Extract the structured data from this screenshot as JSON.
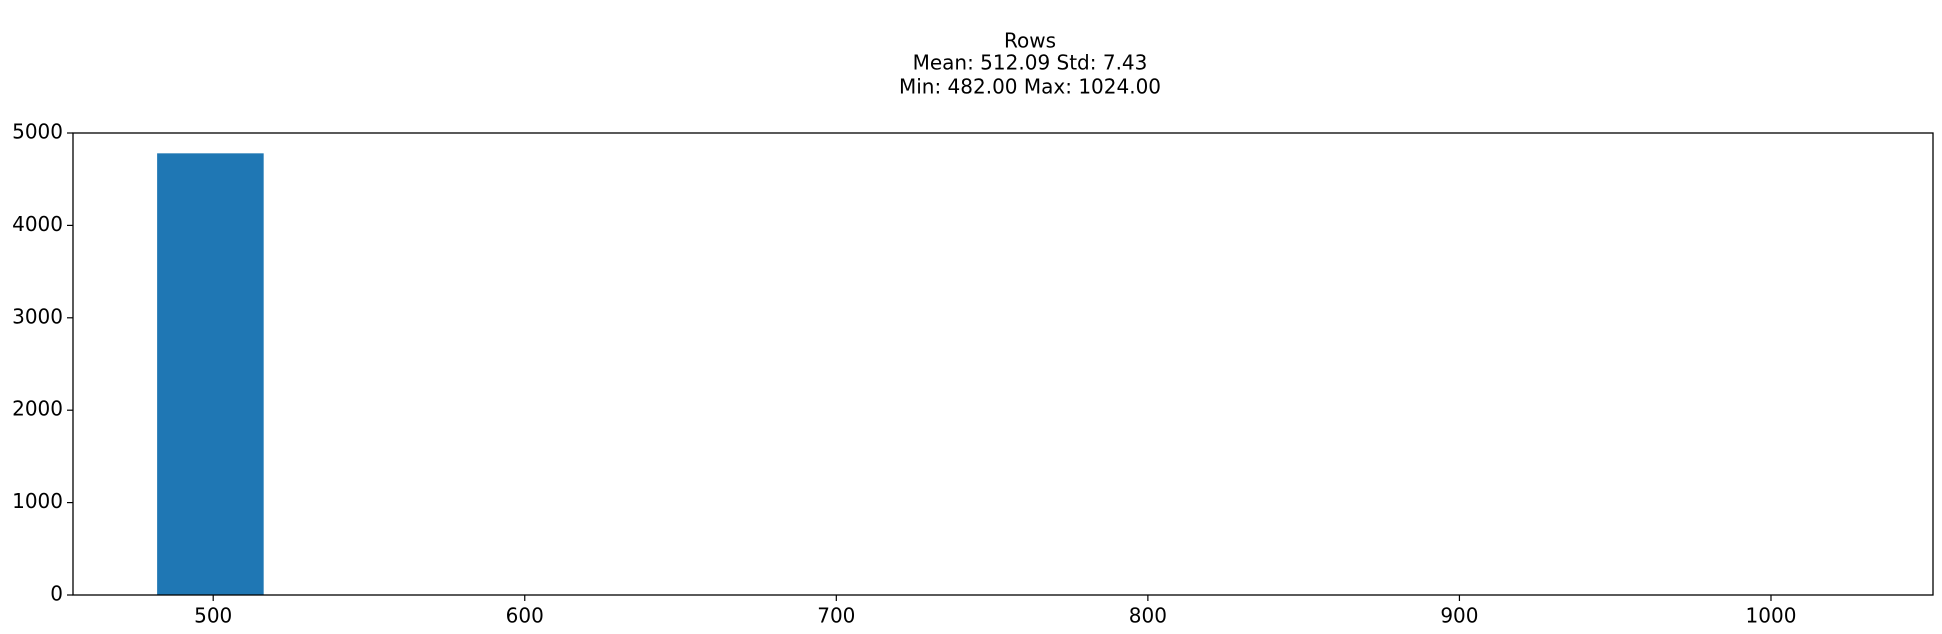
{
  "chart_data": {
    "type": "bar",
    "title_lines": [
      "Rows",
      "Mean: 512.09 Std: 7.43",
      "Min: 482.00 Max: 1024.00"
    ],
    "xlabel": "",
    "ylabel": "",
    "xlim": [
      455,
      1052
    ],
    "ylim": [
      0,
      5000
    ],
    "xticks": [
      500,
      600,
      700,
      800,
      900,
      1000
    ],
    "yticks": [
      0,
      1000,
      2000,
      3000,
      4000,
      5000
    ],
    "bins": [
      {
        "x0": 482.0,
        "x1": 516.2,
        "count": 4780
      },
      {
        "x0": 516.2,
        "x1": 550.4,
        "count": 0
      },
      {
        "x0": 550.4,
        "x1": 584.6,
        "count": 0
      },
      {
        "x0": 584.6,
        "x1": 618.8,
        "count": 0
      },
      {
        "x0": 618.8,
        "x1": 653.0,
        "count": 0
      },
      {
        "x0": 653.0,
        "x1": 687.2,
        "count": 0
      },
      {
        "x0": 687.2,
        "x1": 721.4,
        "count": 0
      },
      {
        "x0": 721.4,
        "x1": 755.6,
        "count": 0
      },
      {
        "x0": 755.6,
        "x1": 789.8,
        "count": 0
      },
      {
        "x0": 789.8,
        "x1": 824.0,
        "count": 0
      },
      {
        "x0": 824.0,
        "x1": 858.2,
        "count": 0
      },
      {
        "x0": 858.2,
        "x1": 892.4,
        "count": 0
      },
      {
        "x0": 892.4,
        "x1": 926.6,
        "count": 0
      },
      {
        "x0": 926.6,
        "x1": 960.8,
        "count": 0
      },
      {
        "x0": 960.8,
        "x1": 995.0,
        "count": 0
      },
      {
        "x0": 995.0,
        "x1": 1024.0,
        "count": 1
      }
    ],
    "bar_color": "#1f77b4",
    "grid": false,
    "legend": false
  }
}
